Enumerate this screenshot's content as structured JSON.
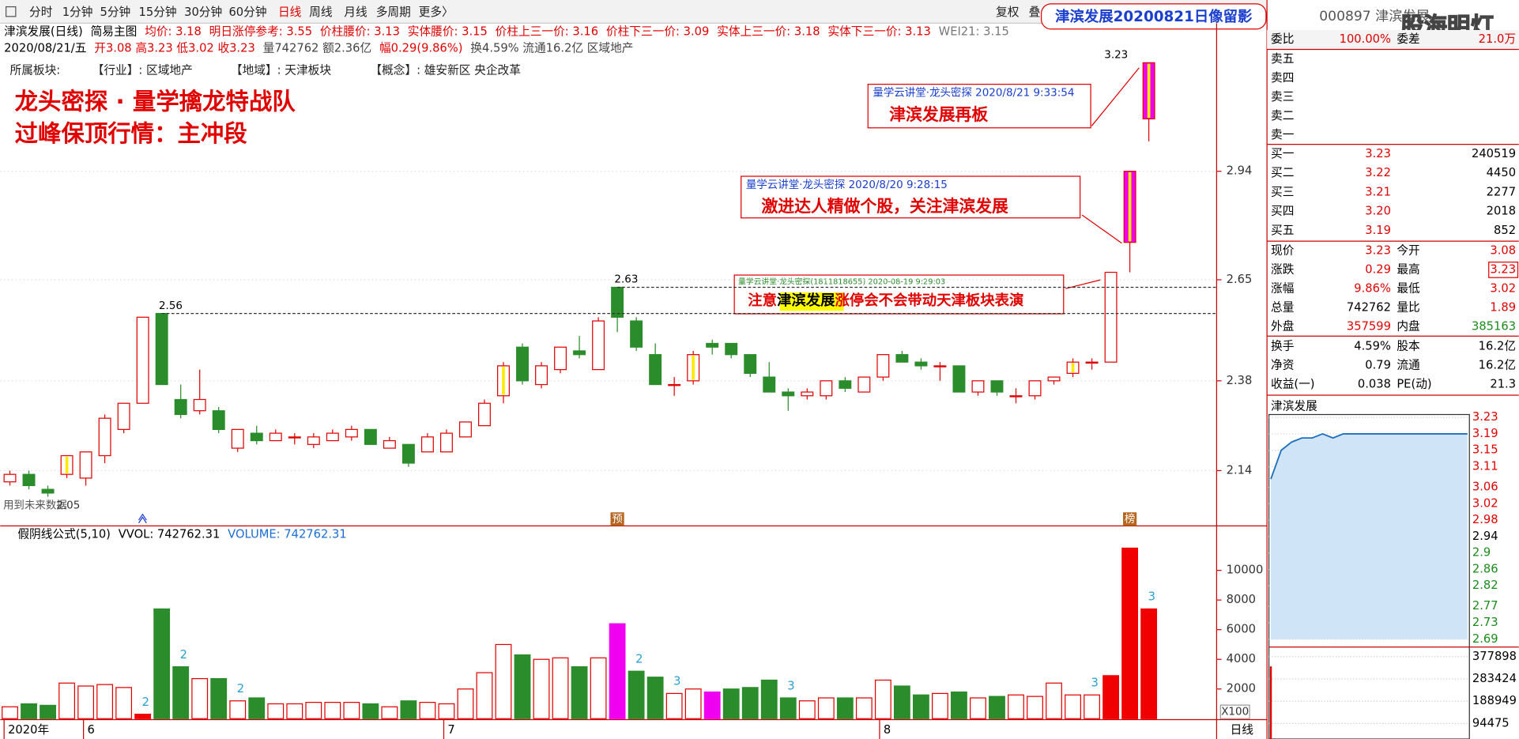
{
  "toolbar": {
    "items": [
      {
        "text": "分时"
      },
      {
        "text": "1分钟"
      },
      {
        "text": "5分钟"
      },
      {
        "text": "15分钟"
      },
      {
        "text": "30分钟"
      },
      {
        "text": "60分钟"
      },
      {
        "text": "日线",
        "active": true
      },
      {
        "text": "周线"
      },
      {
        "text": "月线"
      },
      {
        "text": "多周期"
      },
      {
        "text": "更多〉"
      }
    ],
    "right": [
      "复权",
      "叠"
    ]
  },
  "banner": "津滨发展20200821日像留影",
  "stock_title": "000897 津滨发展",
  "watermark": "股海明灯",
  "header": {
    "line1": [
      {
        "t": "津滨发展(日线)",
        "c": "#000"
      },
      {
        "t": "简易主图",
        "c": "#000"
      },
      {
        "t": "均价: 3.18",
        "c": "#e00000"
      },
      {
        "t": "明日涨停参考: 3.55",
        "c": "#e00000"
      },
      {
        "t": "价柱腰价: 3.13",
        "c": "#e00000"
      },
      {
        "t": "实体腰价: 3.15",
        "c": "#e00000"
      },
      {
        "t": "价柱上三一价: 3.16",
        "c": "#e00000"
      },
      {
        "t": "价柱下三一价: 3.09",
        "c": "#e00000"
      },
      {
        "t": "实体上三一价: 3.18",
        "c": "#e00000"
      },
      {
        "t": "实体下三一价: 3.13",
        "c": "#e00000"
      },
      {
        "t": "WEI21: 3.15",
        "c": "#777"
      }
    ],
    "line2": [
      {
        "t": "2020/08/21/五",
        "c": "#000"
      },
      {
        "t": "开3.08 高3.23 低3.02 收3.23",
        "c": "#e00000"
      },
      {
        "t": "量742762 额2.36亿",
        "c": "#444"
      },
      {
        "t": "幅0.29(9.86%)",
        "c": "#e00000"
      },
      {
        "t": "换4.59% 流通16.2亿 区域地产",
        "c": "#444"
      }
    ],
    "line3": [
      "所属板块:",
      "【行业】: 区域地产",
      "【地域】: 天津板块",
      "【概念】: 雄安新区 央企改革"
    ]
  },
  "headline": [
    "龙头密探 · 量学擒龙特战队",
    "过峰保顶行情：主冲段"
  ],
  "notes": [
    {
      "meta": "量学云讲堂·龙头密探 2020/8/21 9:33:54",
      "text": "津滨发展再板"
    },
    {
      "meta": "量学云讲堂·龙头密探 2020/8/20 9:28:15",
      "text": "激进达人精做个股，关注津滨发展"
    },
    {
      "meta": "量学云讲堂·龙头密探(1811818655) 2020-08-19 9:29:03",
      "parts": [
        "注意",
        "津滨发展",
        "涨停会不会带动天津板块表演"
      ]
    }
  ],
  "kline": {
    "up_color": "#e00000",
    "down_color": "#2a8c2a",
    "ylim": [
      2.0,
      3.32
    ],
    "price_ticks": [
      2.94,
      2.65,
      2.38,
      2.14
    ],
    "vol_ylim": [
      0,
      12800
    ],
    "vol_ticks": [
      10000,
      8000,
      6000,
      4000,
      2000
    ],
    "labels": [
      "2.56",
      "2.63",
      "3.23"
    ],
    "low_note": "用到未来数据",
    "low_label": "2.05",
    "markers": [
      "预",
      "榜"
    ],
    "vol_header": [
      {
        "t": "假阴线公式(5,10)",
        "c": "#000"
      },
      {
        "t": "VVOL: 742762.31",
        "c": "#000"
      },
      {
        "t": "VOLUME: 742762.31",
        "c": "#1a6fd6"
      }
    ],
    "vol_unit": "X100",
    "x_labels": [
      "2020年",
      "6",
      "7",
      "8"
    ],
    "period": "日线",
    "candles": [
      {
        "o": 2.11,
        "h": 2.14,
        "l": 2.1,
        "c": 2.13,
        "v": 800
      },
      {
        "o": 2.13,
        "h": 2.14,
        "l": 2.09,
        "c": 2.1,
        "v": 1000
      },
      {
        "o": 2.09,
        "h": 2.1,
        "l": 2.07,
        "c": 2.08,
        "v": 900
      },
      {
        "o": 2.13,
        "h": 2.18,
        "l": 2.12,
        "c": 2.18,
        "v": 2400,
        "m": "yellow"
      },
      {
        "o": 2.12,
        "h": 2.19,
        "l": 2.1,
        "c": 2.19,
        "v": 2200
      },
      {
        "o": 2.18,
        "h": 2.29,
        "l": 2.16,
        "c": 2.28,
        "v": 2300
      },
      {
        "o": 2.25,
        "h": 2.32,
        "l": 2.24,
        "c": 2.32,
        "v": 2100
      },
      {
        "o": 2.32,
        "h": 2.55,
        "l": 2.32,
        "c": 2.55,
        "v": 300,
        "vc": "#f00000",
        "vl": "2"
      },
      {
        "o": 2.56,
        "h": 2.56,
        "l": 2.37,
        "c": 2.37,
        "v": 7400
      },
      {
        "o": 2.33,
        "h": 2.37,
        "l": 2.28,
        "c": 2.29,
        "v": 3500,
        "vl": "2"
      },
      {
        "o": 2.3,
        "h": 2.41,
        "l": 2.29,
        "c": 2.33,
        "v": 2700
      },
      {
        "o": 2.3,
        "h": 2.31,
        "l": 2.24,
        "c": 2.25,
        "v": 2700
      },
      {
        "o": 2.2,
        "h": 2.25,
        "l": 2.19,
        "c": 2.25,
        "v": 1200,
        "vl": "2"
      },
      {
        "o": 2.24,
        "h": 2.26,
        "l": 2.21,
        "c": 2.22,
        "v": 1400
      },
      {
        "o": 2.22,
        "h": 2.25,
        "l": 2.22,
        "c": 2.24,
        "v": 1000
      },
      {
        "o": 2.23,
        "h": 2.24,
        "l": 2.21,
        "c": 2.23,
        "v": 1000
      },
      {
        "o": 2.21,
        "h": 2.24,
        "l": 2.2,
        "c": 2.23,
        "v": 1100
      },
      {
        "o": 2.22,
        "h": 2.25,
        "l": 2.22,
        "c": 2.24,
        "v": 1100
      },
      {
        "o": 2.23,
        "h": 2.26,
        "l": 2.22,
        "c": 2.25,
        "v": 1100
      },
      {
        "o": 2.25,
        "h": 2.25,
        "l": 2.21,
        "c": 2.21,
        "v": 1000
      },
      {
        "o": 2.2,
        "h": 2.23,
        "l": 2.2,
        "c": 2.22,
        "v": 800
      },
      {
        "o": 2.21,
        "h": 2.21,
        "l": 2.15,
        "c": 2.16,
        "v": 1200
      },
      {
        "o": 2.19,
        "h": 2.24,
        "l": 2.19,
        "c": 2.23,
        "v": 1100
      },
      {
        "o": 2.19,
        "h": 2.25,
        "l": 2.19,
        "c": 2.24,
        "v": 1000
      },
      {
        "o": 2.23,
        "h": 2.27,
        "l": 2.23,
        "c": 2.27,
        "v": 2000
      },
      {
        "o": 2.26,
        "h": 2.33,
        "l": 2.26,
        "c": 2.32,
        "v": 3100
      },
      {
        "o": 2.34,
        "h": 2.43,
        "l": 2.32,
        "c": 2.42,
        "v": 5000,
        "m": "yellow"
      },
      {
        "o": 2.47,
        "h": 2.48,
        "l": 2.37,
        "c": 2.38,
        "v": 4300
      },
      {
        "o": 2.37,
        "h": 2.43,
        "l": 2.36,
        "c": 2.42,
        "v": 4000
      },
      {
        "o": 2.41,
        "h": 2.47,
        "l": 2.4,
        "c": 2.47,
        "v": 4100
      },
      {
        "o": 2.46,
        "h": 2.5,
        "l": 2.44,
        "c": 2.45,
        "v": 3500
      },
      {
        "o": 2.41,
        "h": 2.55,
        "l": 2.41,
        "c": 2.54,
        "v": 4100
      },
      {
        "o": 2.63,
        "h": 2.63,
        "l": 2.51,
        "c": 2.55,
        "v": 6400,
        "vc": "#f000f0"
      },
      {
        "o": 2.54,
        "h": 2.55,
        "l": 2.46,
        "c": 2.47,
        "v": 3200,
        "vl": "2"
      },
      {
        "o": 2.45,
        "h": 2.48,
        "l": 2.37,
        "c": 2.37,
        "v": 2800
      },
      {
        "o": 2.37,
        "h": 2.39,
        "l": 2.34,
        "c": 2.37,
        "v": 1700,
        "vl": "3"
      },
      {
        "o": 2.38,
        "h": 2.46,
        "l": 2.37,
        "c": 2.45,
        "v": 2000,
        "m": "yellow"
      },
      {
        "o": 2.48,
        "h": 2.49,
        "l": 2.45,
        "c": 2.47,
        "v": 1800,
        "vc": "#f000f0"
      },
      {
        "o": 2.48,
        "h": 2.48,
        "l": 2.44,
        "c": 2.45,
        "v": 2000
      },
      {
        "o": 2.45,
        "h": 2.45,
        "l": 2.39,
        "c": 2.4,
        "v": 2100
      },
      {
        "o": 2.39,
        "h": 2.43,
        "l": 2.35,
        "c": 2.35,
        "v": 2600
      },
      {
        "o": 2.35,
        "h": 2.36,
        "l": 2.3,
        "c": 2.34,
        "v": 1400,
        "vl": "3"
      },
      {
        "o": 2.34,
        "h": 2.36,
        "l": 2.33,
        "c": 2.35,
        "v": 1200
      },
      {
        "o": 2.34,
        "h": 2.38,
        "l": 2.33,
        "c": 2.38,
        "v": 1400
      },
      {
        "o": 2.38,
        "h": 2.39,
        "l": 2.35,
        "c": 2.36,
        "v": 1400
      },
      {
        "o": 2.35,
        "h": 2.39,
        "l": 2.35,
        "c": 2.39,
        "v": 1400
      },
      {
        "o": 2.39,
        "h": 2.45,
        "l": 2.38,
        "c": 2.45,
        "v": 2600
      },
      {
        "o": 2.45,
        "h": 2.46,
        "l": 2.43,
        "c": 2.43,
        "v": 2200
      },
      {
        "o": 2.43,
        "h": 2.44,
        "l": 2.41,
        "c": 2.42,
        "v": 1600
      },
      {
        "o": 2.42,
        "h": 2.43,
        "l": 2.38,
        "c": 2.42,
        "v": 1700
      },
      {
        "o": 2.42,
        "h": 2.42,
        "l": 2.35,
        "c": 2.35,
        "v": 1800
      },
      {
        "o": 2.35,
        "h": 2.38,
        "l": 2.34,
        "c": 2.38,
        "v": 1400
      },
      {
        "o": 2.38,
        "h": 2.38,
        "l": 2.34,
        "c": 2.35,
        "v": 1500
      },
      {
        "o": 2.34,
        "h": 2.36,
        "l": 2.32,
        "c": 2.34,
        "v": 1600
      },
      {
        "o": 2.34,
        "h": 2.38,
        "l": 2.33,
        "c": 2.38,
        "v": 1500
      },
      {
        "o": 2.38,
        "h": 2.39,
        "l": 2.37,
        "c": 2.39,
        "v": 2400
      },
      {
        "o": 2.4,
        "h": 2.44,
        "l": 2.39,
        "c": 2.43,
        "v": 1600,
        "m": "yellow"
      },
      {
        "o": 2.43,
        "h": 2.44,
        "l": 2.41,
        "c": 2.43,
        "v": 1600,
        "vl": "3"
      },
      {
        "o": 2.43,
        "h": 2.67,
        "l": 2.43,
        "c": 2.67,
        "v": 2900,
        "vc": "#f00000"
      },
      {
        "o": 2.75,
        "h": 2.94,
        "l": 2.67,
        "c": 2.94,
        "v": 11500,
        "vc": "#f00000",
        "m": "magenta"
      },
      {
        "o": 3.08,
        "h": 3.23,
        "l": 3.02,
        "c": 3.23,
        "v": 7400,
        "vc": "#f00000",
        "m": "magenta",
        "vl": "3"
      }
    ]
  },
  "quote": {
    "ratio": {
      "l": "委比",
      "v": "100.00%",
      "l2": "委差",
      "v2": "21.0万"
    },
    "sell": [
      "卖五",
      "卖四",
      "卖三",
      "卖二",
      "卖一"
    ],
    "buy": [
      {
        "l": "买一",
        "p": "3.23",
        "q": "240519"
      },
      {
        "l": "买二",
        "p": "3.22",
        "q": "4450"
      },
      {
        "l": "买三",
        "p": "3.21",
        "q": "2277"
      },
      {
        "l": "买四",
        "p": "3.20",
        "q": "2018"
      },
      {
        "l": "买五",
        "p": "3.19",
        "q": "852"
      }
    ],
    "stats": [
      {
        "l": "现价",
        "v": "3.23",
        "vc": "#e00000",
        "l2": "今开",
        "v2": "3.08",
        "v2c": "#e00000"
      },
      {
        "l": "涨跌",
        "v": "0.29",
        "vc": "#e00000",
        "l2": "最高",
        "v2": "3.23",
        "v2c": "#e00000",
        "box": true
      },
      {
        "l": "涨幅",
        "v": "9.86%",
        "vc": "#e00000",
        "l2": "最低",
        "v2": "3.02",
        "v2c": "#e00000"
      },
      {
        "l": "总量",
        "v": "742762",
        "vc": "#000",
        "l2": "量比",
        "v2": "1.89",
        "v2c": "#e00000"
      },
      {
        "l": "外盘",
        "v": "357599",
        "vc": "#e00000",
        "l2": "内盘",
        "v2": "385163",
        "v2c": "#1a8c1a"
      }
    ],
    "fin": [
      {
        "l": "换手",
        "v": "4.59%",
        "vc": "#000",
        "l2": "股本",
        "v2": "16.2亿",
        "v2c": "#000"
      },
      {
        "l": "净资",
        "v": "0.79",
        "vc": "#000",
        "l2": "流通",
        "v2": "16.2亿",
        "v2c": "#000"
      },
      {
        "l": "收益(一)",
        "v": "0.038",
        "vc": "#000",
        "l2": "PE(动)",
        "v2": "21.3",
        "v2c": "#000"
      }
    ]
  },
  "intraday": {
    "title": "津滨发展",
    "ylim": [
      2.69,
      3.23
    ],
    "price_ticks": [
      3.23,
      3.19,
      3.15,
      3.11,
      3.06,
      3.02,
      2.98,
      2.94,
      2.9,
      2.86,
      2.82,
      2.77,
      2.73,
      2.69
    ],
    "ref": 2.94,
    "values": [
      3.08,
      3.15,
      3.17,
      3.18,
      3.18,
      3.19,
      3.18,
      3.19,
      3.19,
      3.19,
      3.19,
      3.19,
      3.19,
      3.19,
      3.19,
      3.19,
      3.19,
      3.19,
      3.19,
      3.19
    ],
    "vol_ylim": [
      0,
      377898
    ],
    "vol_ticks": [
      377898,
      283424,
      188949,
      94475
    ],
    "volumes": [
      336800
    ]
  }
}
